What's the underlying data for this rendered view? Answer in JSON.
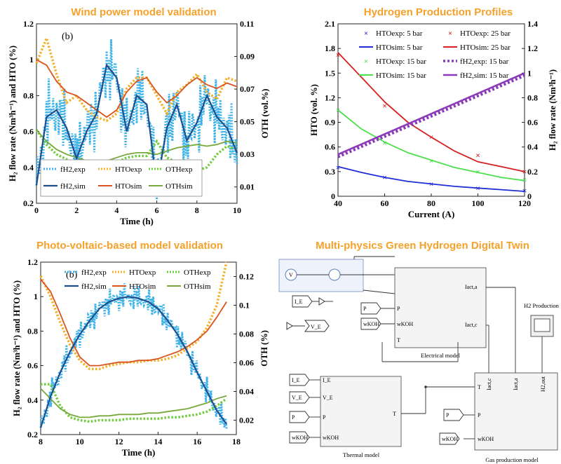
{
  "colors": {
    "title_orange": "#f5a12a",
    "cyan": "#3fb3e8",
    "darkblue": "#1f4e8c",
    "gold": "#f2b12c",
    "redorange": "#d9531e",
    "green": "#6fcc3d",
    "olive": "#77a83a",
    "blue": "#1f2dd6",
    "red": "#d62020",
    "lightgreen": "#4de04d",
    "purple": "#8a3ab8"
  },
  "panels": {
    "wind": {
      "title": "Wind power model validation",
      "tag": "(b)",
      "xlabel": "Time (h)",
      "ylabel_left": "H₂ flow rate (Nm³h⁻¹) and HTO (%)",
      "ylabel_right": "OTH (vol.%)",
      "xticks": [
        "0",
        "2",
        "4",
        "6",
        "8",
        "10"
      ],
      "yticks_left": [
        "0.2",
        "0.4",
        "0.6",
        "0.8",
        "1",
        "1.2"
      ],
      "yticks_right": [
        "0.01",
        "0.03",
        "0.05",
        "0.07",
        "0.09",
        "0.11"
      ],
      "legend": [
        "fH2,exp",
        "HTOexp",
        "OTHexp",
        "fH2,sim",
        "HTOsim",
        "OTHsim"
      ]
    },
    "hydrogen": {
      "title": "Hydrogen Production Profiles",
      "xlabel": "Current (A)",
      "ylabel_left": "HTO (vol. %)",
      "ylabel_right": "H₂ flow rate (Nm³h⁻¹)",
      "xticks": [
        "40",
        "60",
        "80",
        "100",
        "120"
      ],
      "yticks_left": [
        "0",
        "0.3",
        "0.6",
        "0.9",
        "1.2",
        "1.5",
        "1.8",
        "2.1"
      ],
      "yticks_right": [
        "0",
        "0.2",
        "0.4",
        "0.6",
        "0.8",
        "1",
        "1.2",
        "1.4"
      ],
      "legend": [
        "HTOexp: 5 bar",
        "HTOexp: 25 bar",
        "HTOsim: 5 bar",
        "HTOsim: 25 bar",
        "HTOexp: 15 bar",
        "fH2,exp: 15 bar",
        "HTOsim: 15 bar",
        "fH2,sim: 15 bar"
      ]
    },
    "pv": {
      "title": "Photo-voltaic-based model validation",
      "tag": "(b)",
      "xlabel": "Time (h)",
      "ylabel_left": "H₂ flow rate (Nm³h⁻¹) and HTO (%)",
      "ylabel_right": "OTH (%)",
      "xticks": [
        "8",
        "10",
        "12",
        "14",
        "16",
        "18"
      ],
      "yticks_left": [
        "0.2",
        "0.4",
        "0.6",
        "0.8",
        "1",
        "1.2"
      ],
      "yticks_right": [
        "0.02",
        "0.04",
        "0.06",
        "0.08",
        "0.1",
        "0.12"
      ],
      "legend": [
        "fH2,exp",
        "HTOexp",
        "OTHexp",
        "fH2,sim",
        "HTOsim",
        "OTHsim"
      ]
    },
    "twin": {
      "title": "Multi-physics Green Hydrogen Digital Twin",
      "electrical_label": "Electrical model",
      "thermal_label": "Thermal model",
      "gas_label": "Gas production model",
      "scope_label": "H2 Production",
      "ports": {
        "I_E": "I_E",
        "V_E": "V_E",
        "P": "P",
        "wKOH": "wKOH",
        "T": "T",
        "Iact_a": "Iact,a",
        "Iact_c": "Iact,c",
        "H2out": "H2,out",
        "plus": "+",
        "minus": "-",
        "V": "V"
      }
    }
  },
  "chart_data": [
    {
      "type": "line",
      "title": "Wind power model validation",
      "xlabel": "Time (h)",
      "ylabel": "H2 flow rate (Nm3h-1) and HTO (%)",
      "y2label": "OTH (vol.%)",
      "xlim": [
        0,
        10
      ],
      "ylim": [
        0.2,
        1.2
      ],
      "y2lim": [
        0.0,
        0.11
      ],
      "x": [
        0,
        0.5,
        1,
        1.5,
        2,
        2.5,
        3,
        3.5,
        4,
        4.5,
        5,
        5.5,
        6,
        6.5,
        7,
        7.5,
        8,
        8.5,
        9,
        9.5,
        10
      ],
      "series": [
        {
          "name": "fH2,sim",
          "axis": "left",
          "values": [
            0.3,
            0.68,
            0.72,
            0.62,
            0.45,
            0.6,
            0.7,
            0.97,
            0.9,
            0.6,
            0.8,
            0.75,
            0.3,
            0.62,
            0.75,
            0.55,
            0.65,
            0.8,
            0.68,
            0.62,
            0.48
          ]
        },
        {
          "name": "HTOsim",
          "axis": "left",
          "values": [
            1.0,
            0.97,
            0.88,
            0.82,
            0.8,
            0.76,
            0.72,
            0.68,
            0.72,
            0.82,
            0.88,
            0.9,
            0.82,
            0.76,
            0.8,
            0.86,
            0.9,
            0.86,
            0.84,
            0.87,
            0.85
          ]
        },
        {
          "name": "HTOexp",
          "axis": "left",
          "values": [
            0.98,
            1.12,
            0.92,
            0.76,
            0.8,
            0.72,
            0.68,
            0.66,
            0.7,
            0.84,
            0.9,
            0.9,
            0.8,
            0.7,
            0.82,
            0.86,
            0.92,
            0.82,
            0.78,
            0.9,
            0.88
          ]
        },
        {
          "name": "OTHsim",
          "axis": "right",
          "values": [
            0.045,
            0.038,
            0.033,
            0.03,
            0.028,
            0.026,
            0.025,
            0.026,
            0.028,
            0.03,
            0.031,
            0.031,
            0.03,
            0.032,
            0.034,
            0.035,
            0.036,
            0.035,
            0.036,
            0.038,
            0.037
          ]
        },
        {
          "name": "OTHexp",
          "axis": "right",
          "values": [
            0.045,
            0.036,
            0.03,
            0.027,
            0.024,
            0.022,
            0.021,
            0.022,
            0.025,
            0.028,
            0.029,
            0.029,
            0.038,
            0.028,
            0.025,
            0.024,
            0.02,
            0.022,
            0.03,
            0.035,
            0.033
          ]
        }
      ]
    },
    {
      "type": "line",
      "title": "Hydrogen Production Profiles",
      "xlabel": "Current (A)",
      "ylabel": "HTO (vol. %)",
      "y2label": "H2 flow rate (Nm3h-1)",
      "xlim": [
        40,
        120
      ],
      "ylim": [
        0,
        2.1
      ],
      "y2lim": [
        0,
        1.4
      ],
      "series": [
        {
          "name": "HTOexp: 5 bar",
          "axis": "left",
          "x": [
            40,
            60,
            80,
            100,
            120
          ],
          "values": [
            0.35,
            0.23,
            0.15,
            0.1,
            0.07
          ]
        },
        {
          "name": "HTOexp: 25 bar",
          "axis": "left",
          "x": [
            40,
            60,
            80,
            100,
            120
          ],
          "values": [
            1.72,
            1.1,
            0.72,
            0.5,
            0.3
          ]
        },
        {
          "name": "HTOexp: 15 bar",
          "axis": "left",
          "x": [
            40,
            60,
            80,
            100,
            120
          ],
          "values": [
            1.05,
            0.65,
            0.43,
            0.3,
            0.2
          ]
        },
        {
          "name": "HTOsim: 5 bar",
          "axis": "left",
          "x": [
            40,
            50,
            60,
            70,
            80,
            90,
            100,
            110,
            120
          ],
          "values": [
            0.36,
            0.29,
            0.23,
            0.18,
            0.15,
            0.12,
            0.1,
            0.08,
            0.06
          ]
        },
        {
          "name": "HTOsim: 25 bar",
          "axis": "left",
          "x": [
            40,
            50,
            60,
            70,
            80,
            90,
            100,
            110,
            120
          ],
          "values": [
            1.75,
            1.45,
            1.15,
            0.9,
            0.72,
            0.55,
            0.42,
            0.36,
            0.3
          ]
        },
        {
          "name": "HTOsim: 15 bar",
          "axis": "left",
          "x": [
            40,
            50,
            60,
            70,
            80,
            90,
            100,
            110,
            120
          ],
          "values": [
            1.05,
            0.82,
            0.66,
            0.53,
            0.44,
            0.35,
            0.29,
            0.23,
            0.19
          ]
        },
        {
          "name": "fH2,exp: 15 bar",
          "axis": "right",
          "x": [
            40,
            120
          ],
          "values": [
            0.32,
            0.98
          ]
        },
        {
          "name": "fH2,sim: 15 bar",
          "axis": "right",
          "x": [
            40,
            120
          ],
          "values": [
            0.34,
            1.0
          ]
        }
      ]
    },
    {
      "type": "line",
      "title": "Photo-voltaic-based model validation",
      "xlabel": "Time (h)",
      "ylabel": "H2 flow rate (Nm3h-1) and HTO (%)",
      "y2label": "OTH (%)",
      "xlim": [
        8,
        18
      ],
      "ylim": [
        0.2,
        1.2
      ],
      "y2lim": [
        0.01,
        0.13
      ],
      "x": [
        8,
        8.5,
        9,
        9.5,
        10,
        10.5,
        11,
        11.5,
        12,
        12.5,
        13,
        13.5,
        14,
        14.5,
        15,
        15.5,
        16,
        16.5,
        17,
        17.5
      ],
      "series": [
        {
          "name": "fH2,sim",
          "axis": "left",
          "values": [
            0.24,
            0.42,
            0.56,
            0.68,
            0.78,
            0.86,
            0.93,
            0.97,
            0.99,
            1.0,
            0.99,
            0.97,
            0.93,
            0.86,
            0.78,
            0.68,
            0.56,
            0.45,
            0.34,
            0.26
          ]
        },
        {
          "name": "HTOsim",
          "axis": "left",
          "values": [
            1.1,
            1.03,
            0.9,
            0.76,
            0.65,
            0.6,
            0.6,
            0.61,
            0.62,
            0.62,
            0.63,
            0.63,
            0.64,
            0.66,
            0.68,
            0.71,
            0.75,
            0.8,
            0.88,
            0.97
          ]
        },
        {
          "name": "HTOexp",
          "axis": "left",
          "values": [
            1.12,
            1.0,
            0.85,
            0.72,
            0.63,
            0.58,
            0.58,
            0.6,
            0.61,
            0.62,
            0.62,
            0.63,
            0.63,
            0.64,
            0.66,
            0.7,
            0.74,
            0.82,
            0.95,
            1.2
          ]
        },
        {
          "name": "OTHsim",
          "axis": "right",
          "values": [
            0.042,
            0.035,
            0.028,
            0.024,
            0.022,
            0.022,
            0.023,
            0.023,
            0.024,
            0.024,
            0.024,
            0.025,
            0.025,
            0.026,
            0.027,
            0.028,
            0.03,
            0.032,
            0.035,
            0.037
          ]
        },
        {
          "name": "OTHexp",
          "axis": "right",
          "values": [
            0.045,
            0.045,
            0.03,
            0.022,
            0.02,
            0.019,
            0.02,
            0.02,
            0.02,
            0.021,
            0.021,
            0.021,
            0.021,
            0.022,
            0.022,
            0.023,
            0.024,
            0.026,
            0.03,
            0.035
          ]
        }
      ]
    }
  ]
}
